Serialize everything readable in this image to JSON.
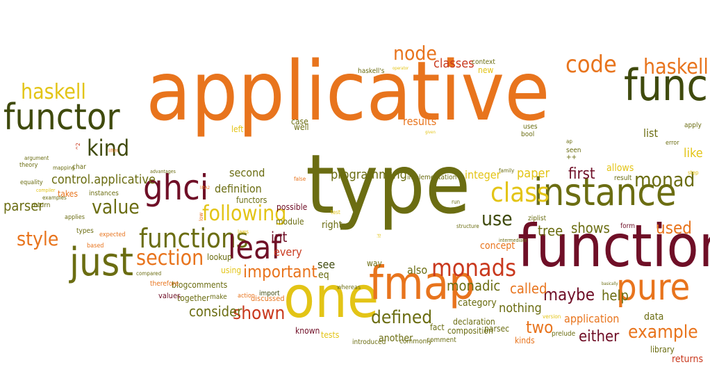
{
  "colors": {
    "orange": "#e8741d",
    "olive": "#6b6d12",
    "maroon": "#6f0f27",
    "yellow": "#e3c416",
    "darkgreen": "#3f4a0d",
    "red": "#c9391e",
    "brown": "#8a4a1a"
  },
  "words": [
    {
      "text": "applicative",
      "color": "orange"
    },
    {
      "text": "type",
      "color": "olive"
    },
    {
      "text": "function",
      "color": "maroon"
    },
    {
      "text": "one",
      "color": "yellow"
    },
    {
      "text": "functor",
      "color": "darkgreen"
    },
    {
      "text": "func",
      "color": "darkgreen"
    },
    {
      "text": "instance",
      "color": "olive"
    },
    {
      "text": "just",
      "color": "olive"
    },
    {
      "text": "fmap",
      "color": "orange"
    },
    {
      "text": "pure",
      "color": "orange"
    },
    {
      "text": "ghci",
      "color": "maroon"
    },
    {
      "text": "haskell",
      "color": "yellow"
    },
    {
      "text": "haskell",
      "color": "orange"
    },
    {
      "text": "code",
      "color": "orange"
    },
    {
      "text": "functions",
      "color": "olive"
    },
    {
      "text": "class",
      "color": "yellow"
    },
    {
      "text": "leaf",
      "color": "maroon"
    },
    {
      "text": "section",
      "color": "orange"
    },
    {
      "text": "monads",
      "color": "red"
    },
    {
      "text": "kind",
      "color": "darkgreen"
    },
    {
      "text": "value",
      "color": "olive"
    },
    {
      "text": "following",
      "color": "yellow"
    },
    {
      "text": "node",
      "color": "orange"
    },
    {
      "text": "monad",
      "color": "olive"
    },
    {
      "text": "style",
      "color": "orange"
    },
    {
      "text": "example",
      "color": "orange"
    },
    {
      "text": "maybe",
      "color": "maroon"
    },
    {
      "text": "shown",
      "color": "red"
    },
    {
      "text": "use",
      "color": "darkgreen"
    },
    {
      "text": "first",
      "color": "maroon"
    },
    {
      "text": "defined",
      "color": "olive"
    },
    {
      "text": "either",
      "color": "maroon"
    },
    {
      "text": "important",
      "color": "orange"
    },
    {
      "text": "used",
      "color": "orange"
    },
    {
      "text": "called",
      "color": "orange"
    },
    {
      "text": "tree",
      "color": "olive"
    },
    {
      "text": "shows",
      "color": "olive"
    },
    {
      "text": "parser",
      "color": "olive"
    },
    {
      "text": "two",
      "color": "orange"
    },
    {
      "text": "help",
      "color": "olive"
    },
    {
      "text": "monadic",
      "color": "olive"
    },
    {
      "text": "consider",
      "color": "olive"
    },
    {
      "text": "programming",
      "color": "olive"
    },
    {
      "text": "classes",
      "color": "red"
    },
    {
      "text": "nothing",
      "color": "olive"
    },
    {
      "text": "paper",
      "color": "yellow"
    },
    {
      "text": "control.applicative",
      "color": "olive"
    },
    {
      "text": "int",
      "color": "maroon"
    },
    {
      "text": "application",
      "color": "orange"
    },
    {
      "text": "definition",
      "color": "olive"
    },
    {
      "text": "results",
      "color": "orange"
    },
    {
      "text": "second",
      "color": "olive"
    },
    {
      "text": "integer",
      "color": "yellow"
    },
    {
      "text": "like",
      "color": "yellow"
    },
    {
      "text": "list",
      "color": "olive"
    },
    {
      "text": "allows",
      "color": "yellow"
    },
    {
      "text": "also",
      "color": "olive"
    },
    {
      "text": "see",
      "color": "darkgreen"
    },
    {
      "text": "eq",
      "color": "olive"
    },
    {
      "text": "right",
      "color": "olive"
    },
    {
      "text": "every",
      "color": "red"
    },
    {
      "text": "concept",
      "color": "orange"
    },
    {
      "text": "category",
      "color": "olive"
    },
    {
      "text": "data",
      "color": "olive"
    },
    {
      "text": "returns",
      "color": "red"
    },
    {
      "text": "library",
      "color": "olive"
    },
    {
      "text": "kinds",
      "color": "orange"
    },
    {
      "text": "another",
      "color": "olive"
    },
    {
      "text": "declaration",
      "color": "olive"
    },
    {
      "text": "composition",
      "color": "olive"
    },
    {
      "text": "parsec",
      "color": "olive"
    },
    {
      "text": "fact",
      "color": "olive"
    },
    {
      "text": "known",
      "color": "maroon"
    },
    {
      "text": "tests",
      "color": "yellow"
    },
    {
      "text": "introduced",
      "color": "olive"
    },
    {
      "text": "commonly",
      "color": "olive"
    },
    {
      "text": "comment",
      "color": "olive"
    },
    {
      "text": "prelude",
      "color": "olive"
    },
    {
      "text": "version",
      "color": "yellow"
    },
    {
      "text": "way",
      "color": "olive"
    },
    {
      "text": "whereas",
      "color": "olive"
    },
    {
      "text": "discussed",
      "color": "orange"
    },
    {
      "text": "import",
      "color": "darkgreen"
    },
    {
      "text": "action",
      "color": "orange"
    },
    {
      "text": "make",
      "color": "olive"
    },
    {
      "text": "together",
      "color": "olive"
    },
    {
      "text": "values",
      "color": "maroon"
    },
    {
      "text": "blogcomments",
      "color": "olive"
    },
    {
      "text": "therefore",
      "color": "orange"
    },
    {
      "text": "compared",
      "color": "olive"
    },
    {
      "text": "using",
      "color": "yellow"
    },
    {
      "text": "lookup",
      "color": "olive"
    },
    {
      "text": "module",
      "color": "olive"
    },
    {
      "text": "possible",
      "color": "maroon"
    },
    {
      "text": "functors",
      "color": "olive"
    },
    {
      "text": "left",
      "color": "yellow"
    },
    {
      "text": "well",
      "color": "olive"
    },
    {
      "text": "case",
      "color": "olive"
    },
    {
      "text": "uses",
      "color": "olive"
    },
    {
      "text": "bool",
      "color": "olive"
    },
    {
      "text": "given",
      "color": "yellow"
    },
    {
      "text": "ap",
      "color": "olive"
    },
    {
      "text": "seen",
      "color": "olive"
    },
    {
      "text": "++",
      "color": "olive"
    },
    {
      "text": "context",
      "color": "olive"
    },
    {
      "text": "new",
      "color": "yellow"
    },
    {
      "text": "haskell's",
      "color": "olive"
    },
    {
      "text": "operator",
      "color": "yellow"
    },
    {
      "text": "apply",
      "color": "olive"
    },
    {
      "text": "error",
      "color": "olive"
    },
    {
      "text": "step",
      "color": "yellow"
    },
    {
      "text": "family",
      "color": "olive"
    },
    {
      "text": "result",
      "color": "olive"
    },
    {
      "text": "implementation",
      "color": "olive"
    },
    {
      "text": "run",
      "color": "olive"
    },
    {
      "text": "ziplist",
      "color": "olive"
    },
    {
      "text": "structure",
      "color": "olive"
    },
    {
      "text": "intermediate",
      "color": "olive"
    },
    {
      "text": "form",
      "color": "maroon"
    },
    {
      "text": "basically",
      "color": "olive"
    },
    {
      "text": "laws",
      "color": "yellow"
    },
    {
      "text": "test",
      "color": "yellow"
    },
    {
      "text": "false",
      "color": "orange"
    },
    {
      "text": "liftA2",
      "color": "orange"
    },
    {
      "text": "advantages",
      "color": "olive"
    },
    {
      "text": "liftm",
      "color": "orange"
    },
    {
      "text": "char",
      "color": "olive"
    },
    {
      "text": "mapping",
      "color": "olive"
    },
    {
      "text": "argument",
      "color": "olive"
    },
    {
      "text": "theory",
      "color": "olive"
    },
    {
      "text": "equality",
      "color": "olive"
    },
    {
      "text": "compiler",
      "color": "yellow"
    },
    {
      "text": "takes",
      "color": "orange"
    },
    {
      "text": "instances",
      "color": "olive"
    },
    {
      "text": "examples",
      "color": "olive"
    },
    {
      "text": "return",
      "color": "olive"
    },
    {
      "text": "applies",
      "color": "olive"
    },
    {
      "text": "types",
      "color": "olive"
    },
    {
      "text": "expected",
      "color": "orange"
    },
    {
      "text": "based",
      "color": "orange"
    },
    {
      "text": "^2",
      "color": "red"
    },
    {
      "text": "low",
      "color": "orange"
    },
    {
      "text": "id",
      "color": "yellow"
    }
  ]
}
